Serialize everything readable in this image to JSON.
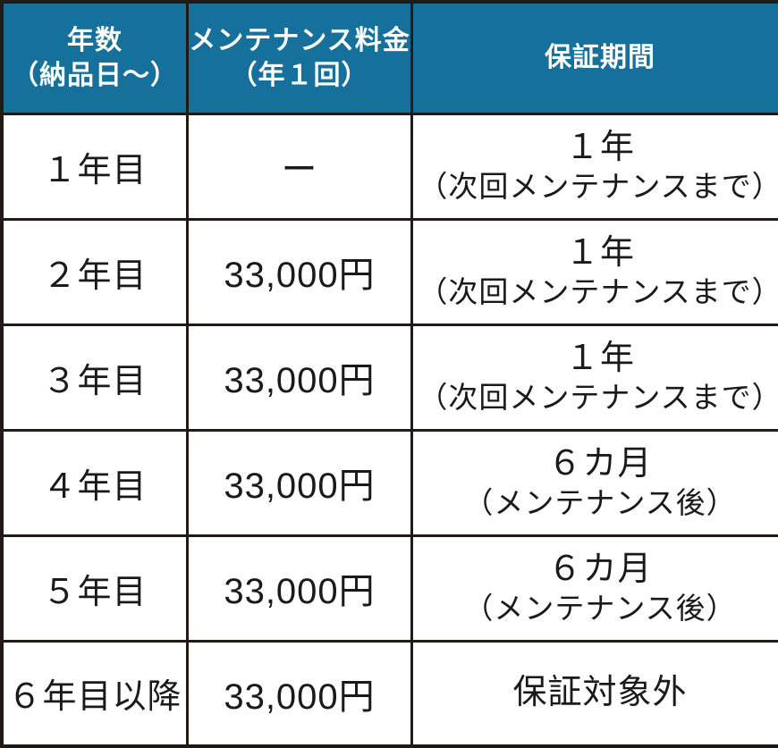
{
  "colors": {
    "header_bg": "#15719b",
    "header_text": "#ffffff",
    "border": "#221a16",
    "body_text": "#1a1a1a",
    "body_bg": "#ffffff"
  },
  "chart_data": {
    "type": "table",
    "title": "",
    "columns": [
      {
        "line1": "年数",
        "line2": "（納品日〜）"
      },
      {
        "line1": "メンテナンス料金",
        "line2": "（年１回）"
      },
      {
        "line1": "保証期間",
        "line2": ""
      }
    ],
    "rows": [
      {
        "year": "１年目",
        "fee": "ー",
        "warranty_main": "１年",
        "warranty_note": "（次回メンテナンスまで）"
      },
      {
        "year": "２年目",
        "fee": "33,000円",
        "warranty_main": "１年",
        "warranty_note": "（次回メンテナンスまで）"
      },
      {
        "year": "３年目",
        "fee": "33,000円",
        "warranty_main": "１年",
        "warranty_note": "（次回メンテナンスまで）"
      },
      {
        "year": "４年目",
        "fee": "33,000円",
        "warranty_main": "６カ月",
        "warranty_note": "（メンテナンス後）"
      },
      {
        "year": "５年目",
        "fee": "33,000円",
        "warranty_main": "６カ月",
        "warranty_note": "（メンテナンス後）"
      },
      {
        "year": "６年目以降",
        "fee": "33,000円",
        "warranty_main": "保証対象外",
        "warranty_note": ""
      }
    ]
  }
}
